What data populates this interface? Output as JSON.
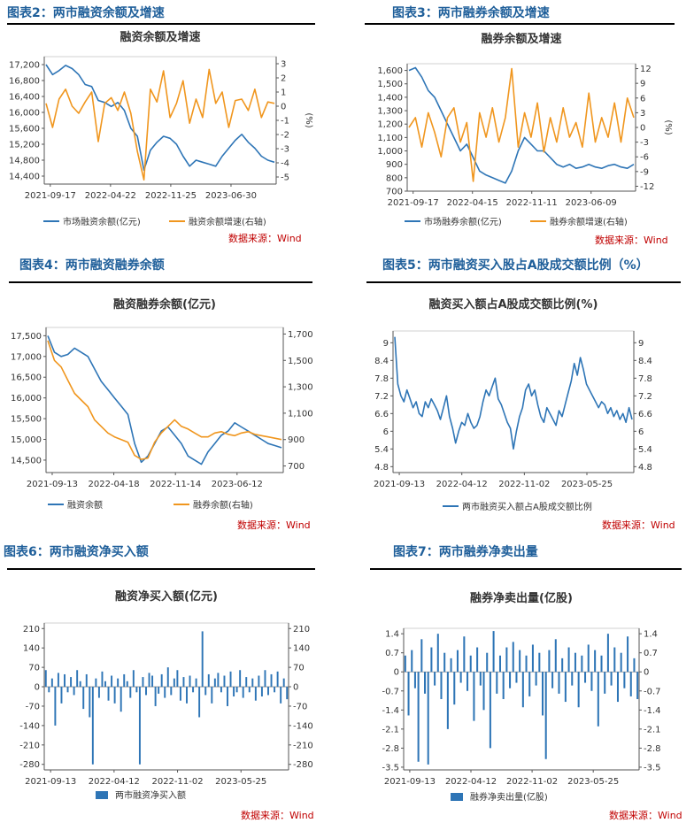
{
  "colors": {
    "blue": "#2e75b6",
    "orange": "#f0961e",
    "heading": "#1f5f9a",
    "source": "#c00000"
  },
  "panels": [
    {
      "heading": "图表2：两市融资余额及增速",
      "source": "数据来源：Wind",
      "chart_data": {
        "type": "line",
        "title": "融资余额及增速",
        "x_ticks": [
          "2021-09-17",
          "2022-04-22",
          "2022-11-25",
          "2023-06-30"
        ],
        "y_left": {
          "ticks": [
            "17,200",
            "16,800",
            "16,400",
            "16,000",
            "15,600",
            "15,200",
            "14,800",
            "14,400"
          ],
          "range": [
            14200,
            17400
          ]
        },
        "y_right": {
          "ticks": [
            "3",
            "2",
            "1",
            "0",
            "-1",
            "-2",
            "-3",
            "-4",
            "-5"
          ],
          "range": [
            -5.5,
            3.5
          ],
          "unit": "(%)"
        },
        "series": [
          {
            "name": "市场融资余额(亿元)",
            "axis": "left",
            "color": "#2e75b6",
            "values": [
              17200,
              16950,
              17050,
              17180,
              17100,
              16950,
              16700,
              16650,
              16300,
              16250,
              16150,
              16250,
              16050,
              15600,
              15400,
              14550,
              15050,
              15250,
              15400,
              15350,
              15200,
              14900,
              14650,
              14800,
              14750,
              14700,
              14650,
              14900,
              15100,
              15300,
              15450,
              15250,
              15100,
              14900,
              14800,
              14750
            ]
          },
          {
            "name": "融资余额增速(右轴)",
            "axis": "right",
            "color": "#f0961e",
            "values": [
              0.2,
              -1.5,
              0.5,
              1.2,
              0.0,
              -0.5,
              0.3,
              1.0,
              -2.5,
              0.2,
              0.6,
              -0.3,
              1.0,
              -0.5,
              -3.2,
              -5.2,
              1.2,
              0.3,
              2.5,
              -0.8,
              0.2,
              1.8,
              -1.2,
              0.5,
              -0.8,
              2.6,
              0.2,
              1.0,
              -1.5,
              0.4,
              0.5,
              -0.3,
              1.2,
              -0.8,
              0.3,
              0.2
            ]
          }
        ]
      }
    },
    {
      "heading": "图表3：两市融券余额及增速",
      "source": "数据来源：Wind",
      "chart_data": {
        "type": "line",
        "title": "融券余额及增速",
        "x_ticks": [
          "2021-09-17",
          "2022-04-15",
          "2022-11-11",
          "2023-06-09"
        ],
        "y_left": {
          "ticks": [
            "1,600",
            "1,500",
            "1,400",
            "1,300",
            "1,200",
            "1,100",
            "1,000",
            "900",
            "800",
            "700"
          ],
          "range": [
            700,
            1650
          ]
        },
        "y_right": {
          "ticks": [
            "12",
            "9",
            "6",
            "3",
            "0",
            "-3",
            "-6",
            "-9",
            "-12"
          ],
          "range": [
            -13,
            13
          ],
          "unit": "(%)"
        },
        "series": [
          {
            "name": "市场融券余额(亿元)",
            "axis": "left",
            "color": "#2e75b6",
            "values": [
              1600,
              1620,
              1550,
              1450,
              1400,
              1300,
              1200,
              1100,
              1000,
              1050,
              950,
              850,
              820,
              800,
              780,
              760,
              850,
              1000,
              1100,
              1050,
              1000,
              1000,
              950,
              900,
              880,
              900,
              870,
              880,
              900,
              880,
              870,
              890,
              900,
              880,
              870,
              900
            ]
          },
          {
            "name": "融券余额增速(右轴)",
            "axis": "right",
            "color": "#f0961e",
            "values": [
              0,
              2,
              -4,
              3,
              -1,
              -6,
              2,
              4,
              -3,
              1,
              -11,
              3,
              -2,
              4,
              -3,
              2,
              12,
              -4,
              3,
              -2,
              5,
              -5,
              2,
              -3,
              4,
              -2,
              1,
              -4,
              7,
              -3,
              2,
              -2,
              5,
              -3,
              6,
              2
            ]
          }
        ]
      }
    },
    {
      "heading": "图表4：两市融资融券余额",
      "source": "数据来源：Wind",
      "chart_data": {
        "type": "line",
        "title": "融资融券余额(亿元)",
        "x_ticks": [
          "2021-09-13",
          "2022-04-18",
          "2022-11-14",
          "2023-06-12"
        ],
        "y_left": {
          "ticks": [
            "17,500",
            "17,000",
            "16,500",
            "16,000",
            "15,500",
            "15,000",
            "14,500"
          ],
          "range": [
            14200,
            17700
          ]
        },
        "y_right": {
          "ticks": [
            "1,700",
            "1,500",
            "1,300",
            "1,100",
            "900",
            "700"
          ],
          "range": [
            650,
            1750
          ]
        },
        "series": [
          {
            "name": "融资余额",
            "axis": "left",
            "color": "#2e75b6",
            "values": [
              17500,
              17100,
              17000,
              17050,
              17200,
              17100,
              17000,
              16700,
              16400,
              16200,
              16000,
              15800,
              15600,
              14900,
              14450,
              14600,
              14900,
              15200,
              15300,
              15100,
              14900,
              14600,
              14500,
              14400,
              14700,
              14900,
              15100,
              15200,
              15400,
              15300,
              15200,
              15100,
              15000,
              14900,
              14850,
              14800
            ]
          },
          {
            "name": "融券余额(右轴)",
            "axis": "right",
            "color": "#f0961e",
            "values": [
              1650,
              1500,
              1450,
              1350,
              1250,
              1200,
              1150,
              1050,
              1000,
              950,
              920,
              900,
              880,
              780,
              750,
              760,
              880,
              950,
              1000,
              1050,
              1000,
              980,
              950,
              920,
              920,
              950,
              960,
              940,
              930,
              950,
              960,
              940,
              930,
              920,
              910,
              900
            ]
          }
        ]
      }
    },
    {
      "heading": "图表5：两市融资买入股占A股成交额比例（%）",
      "source": "数据来源：Wind",
      "chart_data": {
        "type": "line",
        "title": "融资买入额占A股成交额比例(%)",
        "x_ticks": [
          "2021-09-13",
          "2022-04-12",
          "2022-11-02",
          "2023-05-25"
        ],
        "y_left": {
          "ticks": [
            "9",
            "8.4",
            "7.8",
            "7.2",
            "6.6",
            "6",
            "5.4",
            "4.8"
          ],
          "range": [
            4.6,
            9.4
          ]
        },
        "y_right": {
          "ticks": [
            "9",
            "8.4",
            "7.8",
            "7.2",
            "6.6",
            "6",
            "5.4",
            "4.8"
          ],
          "range": [
            4.6,
            9.4
          ]
        },
        "series": [
          {
            "name": "两市融资买入额占A股成交额比例",
            "axis": "left",
            "color": "#2e75b6",
            "values": [
              9.2,
              7.6,
              7.2,
              7.0,
              7.4,
              7.1,
              6.8,
              7.0,
              6.6,
              6.5,
              7.0,
              6.8,
              7.1,
              6.9,
              6.7,
              6.4,
              6.8,
              7.2,
              6.5,
              6.1,
              5.6,
              6.0,
              6.3,
              6.2,
              6.6,
              6.3,
              6.1,
              6.2,
              6.5,
              7.0,
              7.4,
              7.2,
              7.5,
              7.8,
              7.1,
              6.9,
              6.6,
              6.3,
              6.1,
              5.4,
              6.0,
              6.5,
              6.8,
              7.4,
              7.6,
              7.2,
              7.4,
              6.9,
              6.5,
              6.3,
              6.8,
              6.6,
              6.4,
              6.2,
              6.7,
              6.5,
              6.9,
              7.3,
              7.7,
              8.3,
              7.9,
              8.5,
              8.1,
              7.6,
              7.4,
              7.2,
              7.0,
              6.8,
              7.0,
              6.9,
              6.6,
              6.8,
              6.5,
              6.7,
              6.4,
              6.6,
              6.3,
              6.8,
              6.4
            ]
          }
        ]
      }
    },
    {
      "heading": "图表6：两市融资净买入额",
      "source": "数据来源：Wind",
      "chart_data": {
        "type": "bar",
        "title": "融资净买入额(亿元)",
        "x_ticks": [
          "2021-09-13",
          "2022-04-12",
          "2022-11-02",
          "2023-05-25"
        ],
        "y_left": {
          "ticks": [
            "210",
            "140",
            "70",
            "0",
            "-70",
            "-140",
            "-210",
            "-280"
          ],
          "range": [
            -300,
            230
          ]
        },
        "y_right": {
          "ticks": [
            "210",
            "140",
            "70",
            "0",
            "-70",
            "-140",
            "-210",
            "-280"
          ],
          "range": [
            -300,
            230
          ]
        },
        "series": [
          {
            "name": "两市融资净买入额",
            "axis": "left",
            "color": "#2e75b6",
            "values": [
              60,
              -20,
              30,
              -140,
              50,
              -60,
              45,
              -20,
              35,
              -30,
              60,
              20,
              -80,
              45,
              -110,
              -280,
              30,
              -40,
              55,
              20,
              -50,
              40,
              -60,
              30,
              -90,
              45,
              20,
              -40,
              60,
              -20,
              -280,
              35,
              -30,
              50,
              40,
              -70,
              -25,
              45,
              -40,
              70,
              -30,
              30,
              60,
              -50,
              35,
              -60,
              40,
              -20,
              30,
              -110,
              200,
              -30,
              45,
              -60,
              30,
              50,
              -20,
              40,
              -70,
              55,
              -35,
              -20,
              60,
              -40,
              35,
              -20,
              30,
              -50,
              40,
              -35,
              60,
              -30,
              45,
              -20,
              55,
              -60,
              30,
              -45
            ]
          }
        ]
      }
    },
    {
      "heading": "图表7：两市融券净卖出量",
      "source": "数据来源：Wind",
      "chart_data": {
        "type": "bar",
        "title": "融券净卖出量(亿股)",
        "x_ticks": [
          "2021-09-13",
          "2022-04-12",
          "2022-11-02",
          "2023-05-25"
        ],
        "y_left": {
          "ticks": [
            "1.4",
            "0.7",
            "0",
            "-0.7",
            "-1.4",
            "-2.1",
            "-2.8",
            "-3.5"
          ],
          "range": [
            -3.6,
            1.6
          ]
        },
        "y_right": {
          "ticks": [
            "1.4",
            "0.7",
            "0",
            "-0.7",
            "-1.4",
            "-2.1",
            "-2.8",
            "-3.5"
          ],
          "range": [
            -3.6,
            1.6
          ]
        },
        "series": [
          {
            "name": "融券净卖出量(亿股)",
            "axis": "left",
            "color": "#2e75b6",
            "values": [
              0.6,
              -1.6,
              0.8,
              -0.6,
              -3.3,
              1.2,
              -0.8,
              -3.4,
              0.9,
              -0.5,
              1.4,
              -1.0,
              0.7,
              -2.1,
              0.5,
              -1.2,
              0.8,
              -0.4,
              1.3,
              -0.7,
              0.6,
              -1.8,
              0.9,
              -0.5,
              -1.4,
              0.7,
              -2.8,
              1.5,
              -0.8,
              0.6,
              -1.0,
              0.9,
              -0.6,
              1.1,
              -0.4,
              0.8,
              -1.3,
              0.6,
              -0.9,
              1.0,
              -0.5,
              0.7,
              -1.6,
              -3.2,
              0.8,
              -0.6,
              1.2,
              -0.8,
              0.5,
              -1.1,
              0.9,
              -0.5,
              0.7,
              -1.3,
              0.6,
              -0.4,
              1.0,
              -0.7,
              0.8,
              -2.0,
              0.6,
              -0.8,
              1.4,
              -0.5,
              0.9,
              -1.1,
              0.7,
              -0.6,
              1.3,
              -0.9,
              0.5,
              -1.0
            ]
          }
        ]
      }
    }
  ]
}
